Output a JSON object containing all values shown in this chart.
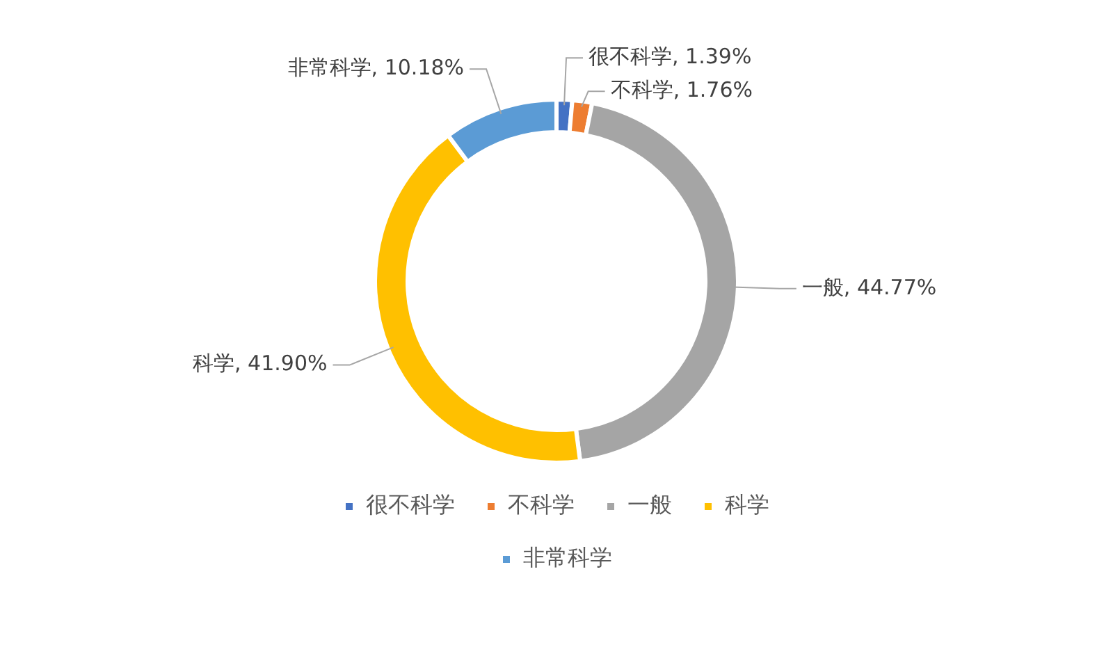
{
  "chart_data": {
    "type": "donut",
    "categories": [
      "很不科学",
      "不科学",
      "一般",
      "科学",
      "非常科学"
    ],
    "values": [
      1.39,
      1.76,
      44.77,
      41.9,
      10.18
    ],
    "colors": [
      "#4472c4",
      "#ed7d31",
      "#a5a5a5",
      "#ffc000",
      "#5b9bd5"
    ],
    "value_labels": [
      "很不科学, 1.39%",
      "不科学, 1.76%",
      "一般, 44.77%",
      "科学, 41.90%",
      "非常科学, 10.18%"
    ],
    "legend": "bottom"
  }
}
